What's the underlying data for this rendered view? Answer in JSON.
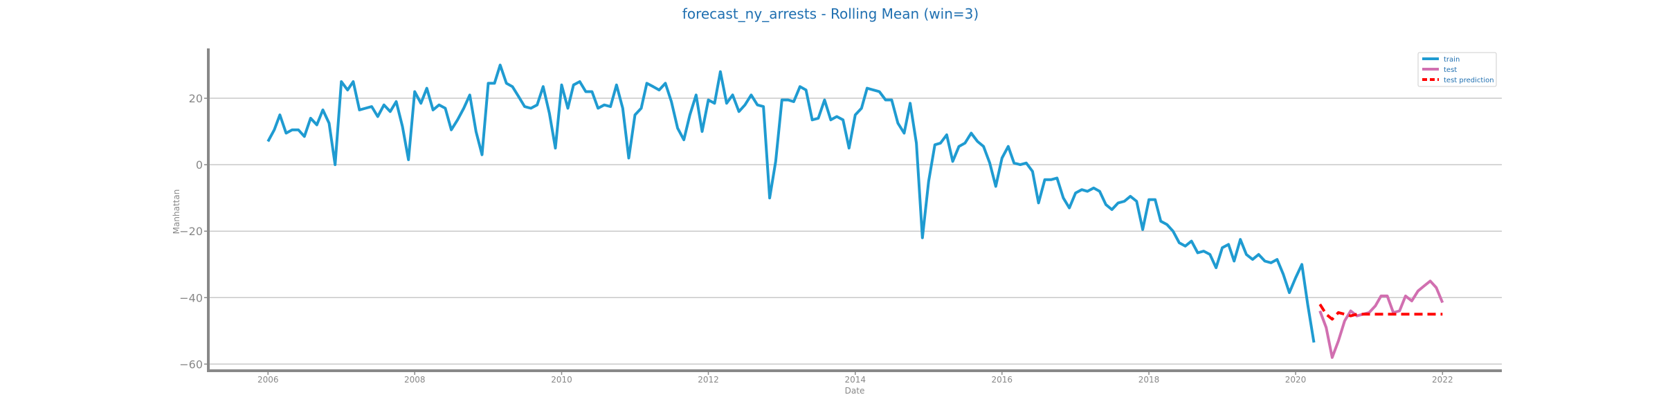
{
  "chart_data": {
    "type": "line",
    "title": "forecast_ny_arrests - Rolling Mean (win=3)",
    "xlabel": "Date",
    "ylabel": "Manhattan",
    "x_ticks": [
      "2006",
      "2008",
      "2010",
      "2012",
      "2014",
      "2016",
      "2018",
      "2020",
      "2022"
    ],
    "y_ticks": [
      -60,
      -40,
      -20,
      0,
      20
    ],
    "xlim": [
      "2005-03-10",
      "2022-10-23"
    ],
    "ylim": [
      -62,
      35
    ],
    "grid": "horizontal",
    "legend_position": "top-right",
    "series": [
      {
        "name": "train",
        "color": "#1f9bd1",
        "dash": "solid",
        "points": [
          [
            "2006-01",
            7
          ],
          [
            "2006-02",
            10.5
          ],
          [
            "2006-03",
            15
          ],
          [
            "2006-04",
            9.5
          ],
          [
            "2006-05",
            10.5
          ],
          [
            "2006-06",
            10.5
          ],
          [
            "2006-07",
            8.5
          ],
          [
            "2006-08",
            14
          ],
          [
            "2006-09",
            12
          ],
          [
            "2006-10",
            16.5
          ],
          [
            "2006-11",
            12.5
          ],
          [
            "2006-12",
            0
          ],
          [
            "2007-01",
            25
          ],
          [
            "2007-02",
            22.5
          ],
          [
            "2007-03",
            25
          ],
          [
            "2007-04",
            16.5
          ],
          [
            "2007-05",
            17
          ],
          [
            "2007-06",
            17.5
          ],
          [
            "2007-07",
            14.5
          ],
          [
            "2007-08",
            18
          ],
          [
            "2007-09",
            16
          ],
          [
            "2007-10",
            19
          ],
          [
            "2007-11",
            11.5
          ],
          [
            "2007-12",
            1.5
          ],
          [
            "2008-01",
            22
          ],
          [
            "2008-02",
            18.5
          ],
          [
            "2008-03",
            23
          ],
          [
            "2008-04",
            16.5
          ],
          [
            "2008-05",
            18
          ],
          [
            "2008-06",
            17
          ],
          [
            "2008-07",
            10.5
          ],
          [
            "2008-08",
            13.5
          ],
          [
            "2008-09",
            17
          ],
          [
            "2008-10",
            21
          ],
          [
            "2008-11",
            10
          ],
          [
            "2008-12",
            3
          ],
          [
            "2009-01",
            24.5
          ],
          [
            "2009-02",
            24.5
          ],
          [
            "2009-03",
            30
          ],
          [
            "2009-04",
            24.5
          ],
          [
            "2009-05",
            23.5
          ],
          [
            "2009-06",
            20.5
          ],
          [
            "2009-07",
            17.5
          ],
          [
            "2009-08",
            17
          ],
          [
            "2009-09",
            18
          ],
          [
            "2009-10",
            23.5
          ],
          [
            "2009-11",
            15.5
          ],
          [
            "2009-12",
            5
          ],
          [
            "2010-01",
            24
          ],
          [
            "2010-02",
            17
          ],
          [
            "2010-03",
            24
          ],
          [
            "2010-04",
            25
          ],
          [
            "2010-05",
            22
          ],
          [
            "2010-06",
            22
          ],
          [
            "2010-07",
            17
          ],
          [
            "2010-08",
            18
          ],
          [
            "2010-09",
            17.5
          ],
          [
            "2010-10",
            24
          ],
          [
            "2010-11",
            17
          ],
          [
            "2010-12",
            2
          ],
          [
            "2011-01",
            15
          ],
          [
            "2011-02",
            17
          ],
          [
            "2011-03",
            24.5
          ],
          [
            "2011-04",
            23.5
          ],
          [
            "2011-05",
            22.5
          ],
          [
            "2011-06",
            24.5
          ],
          [
            "2011-07",
            19
          ],
          [
            "2011-08",
            11
          ],
          [
            "2011-09",
            7.5
          ],
          [
            "2011-10",
            15
          ],
          [
            "2011-11",
            21
          ],
          [
            "2011-12",
            10
          ],
          [
            "2012-01",
            19.5
          ],
          [
            "2012-02",
            18.5
          ],
          [
            "2012-03",
            28
          ],
          [
            "2012-04",
            18.5
          ],
          [
            "2012-05",
            21
          ],
          [
            "2012-06",
            16
          ],
          [
            "2012-07",
            18
          ],
          [
            "2012-08",
            21
          ],
          [
            "2012-09",
            18
          ],
          [
            "2012-10",
            17.5
          ],
          [
            "2012-11",
            -10
          ],
          [
            "2012-12",
            1
          ],
          [
            "2013-01",
            19.5
          ],
          [
            "2013-02",
            19.5
          ],
          [
            "2013-03",
            19
          ],
          [
            "2013-04",
            23.5
          ],
          [
            "2013-05",
            22.5
          ],
          [
            "2013-06",
            13.5
          ],
          [
            "2013-07",
            14
          ],
          [
            "2013-08",
            19.5
          ],
          [
            "2013-09",
            13.5
          ],
          [
            "2013-10",
            14.5
          ],
          [
            "2013-11",
            13.5
          ],
          [
            "2013-12",
            5
          ],
          [
            "2014-01",
            15
          ],
          [
            "2014-02",
            17
          ],
          [
            "2014-03",
            23
          ],
          [
            "2014-04",
            22.5
          ],
          [
            "2014-05",
            22
          ],
          [
            "2014-06",
            19.5
          ],
          [
            "2014-07",
            19.5
          ],
          [
            "2014-08",
            12.5
          ],
          [
            "2014-09",
            9.5
          ],
          [
            "2014-10",
            18.5
          ],
          [
            "2014-11",
            6.5
          ],
          [
            "2014-12",
            -22
          ],
          [
            "2015-01",
            -5
          ],
          [
            "2015-02",
            6
          ],
          [
            "2015-03",
            6.5
          ],
          [
            "2015-04",
            9
          ],
          [
            "2015-05",
            1
          ],
          [
            "2015-06",
            5.5
          ],
          [
            "2015-07",
            6.5
          ],
          [
            "2015-08",
            9.5
          ],
          [
            "2015-09",
            7
          ],
          [
            "2015-10",
            5.5
          ],
          [
            "2015-11",
            0.5
          ],
          [
            "2015-12",
            -6.5
          ],
          [
            "2016-01",
            2
          ],
          [
            "2016-02",
            5.5
          ],
          [
            "2016-03",
            0.5
          ],
          [
            "2016-04",
            0
          ],
          [
            "2016-05",
            0.5
          ],
          [
            "2016-06",
            -2
          ],
          [
            "2016-07",
            -11.5
          ],
          [
            "2016-08",
            -4.5
          ],
          [
            "2016-09",
            -4.5
          ],
          [
            "2016-10",
            -4
          ],
          [
            "2016-11",
            -10
          ],
          [
            "2016-12",
            -13
          ],
          [
            "2017-01",
            -8.5
          ],
          [
            "2017-02",
            -7.5
          ],
          [
            "2017-03",
            -8
          ],
          [
            "2017-04",
            -7
          ],
          [
            "2017-05",
            -8
          ],
          [
            "2017-06",
            -12
          ],
          [
            "2017-07",
            -13.5
          ],
          [
            "2017-08",
            -11.5
          ],
          [
            "2017-09",
            -11
          ],
          [
            "2017-10",
            -9.5
          ],
          [
            "2017-11",
            -11
          ],
          [
            "2017-12",
            -19.5
          ],
          [
            "2018-01",
            -10.5
          ],
          [
            "2018-02",
            -10.5
          ],
          [
            "2018-03",
            -17
          ],
          [
            "2018-04",
            -18
          ],
          [
            "2018-05",
            -20
          ],
          [
            "2018-06",
            -23.5
          ],
          [
            "2018-07",
            -24.5
          ],
          [
            "2018-08",
            -23
          ],
          [
            "2018-09",
            -26.5
          ],
          [
            "2018-10",
            -26
          ],
          [
            "2018-11",
            -27
          ],
          [
            "2018-12",
            -31
          ],
          [
            "2019-01",
            -25
          ],
          [
            "2019-02",
            -24
          ],
          [
            "2019-03",
            -29
          ],
          [
            "2019-04",
            -22.5
          ],
          [
            "2019-05",
            -27
          ],
          [
            "2019-06",
            -28.5
          ],
          [
            "2019-07",
            -27
          ],
          [
            "2019-08",
            -29
          ],
          [
            "2019-09",
            -29.5
          ],
          [
            "2019-10",
            -28.5
          ],
          [
            "2019-11",
            -33
          ],
          [
            "2019-12",
            -38.5
          ],
          [
            "2020-01",
            -34
          ],
          [
            "2020-02",
            -30
          ],
          [
            "2020-03",
            -42
          ],
          [
            "2020-04",
            -53.5
          ]
        ]
      },
      {
        "name": "test",
        "color": "#d16fb0",
        "dash": "solid",
        "points": [
          [
            "2020-05",
            -44
          ],
          [
            "2020-06",
            -49
          ],
          [
            "2020-07",
            -58
          ],
          [
            "2020-08",
            -53
          ],
          [
            "2020-09",
            -47
          ],
          [
            "2020-10",
            -44
          ],
          [
            "2020-11",
            -45.5
          ],
          [
            "2020-12",
            -45
          ],
          [
            "2021-01",
            -44.5
          ],
          [
            "2021-02",
            -42.5
          ],
          [
            "2021-03",
            -39.5
          ],
          [
            "2021-04",
            -39.5
          ],
          [
            "2021-05",
            -44.5
          ],
          [
            "2021-06",
            -44
          ],
          [
            "2021-07",
            -39.5
          ],
          [
            "2021-08",
            -41
          ],
          [
            "2021-09",
            -38
          ],
          [
            "2021-10",
            -36.5
          ],
          [
            "2021-11",
            -35
          ],
          [
            "2021-12",
            -37
          ],
          [
            "2022-01",
            -41.5
          ]
        ]
      },
      {
        "name": "test prediction",
        "color": "#ff0000",
        "dash": "dashed",
        "points": [
          [
            "2020-05",
            -42
          ],
          [
            "2020-06",
            -45
          ],
          [
            "2020-07",
            -46.5
          ],
          [
            "2020-08",
            -44.5
          ],
          [
            "2020-09",
            -45
          ],
          [
            "2020-10",
            -45.5
          ],
          [
            "2020-11",
            -45
          ],
          [
            "2020-12",
            -45
          ],
          [
            "2021-01",
            -45
          ],
          [
            "2021-02",
            -45
          ],
          [
            "2021-03",
            -45
          ],
          [
            "2021-04",
            -45
          ],
          [
            "2021-05",
            -45
          ],
          [
            "2021-06",
            -45
          ],
          [
            "2021-07",
            -45
          ],
          [
            "2021-08",
            -45
          ],
          [
            "2021-09",
            -45
          ],
          [
            "2021-10",
            -45
          ],
          [
            "2021-11",
            -45
          ],
          [
            "2021-12",
            -45
          ],
          [
            "2022-01",
            -45
          ]
        ]
      }
    ]
  }
}
